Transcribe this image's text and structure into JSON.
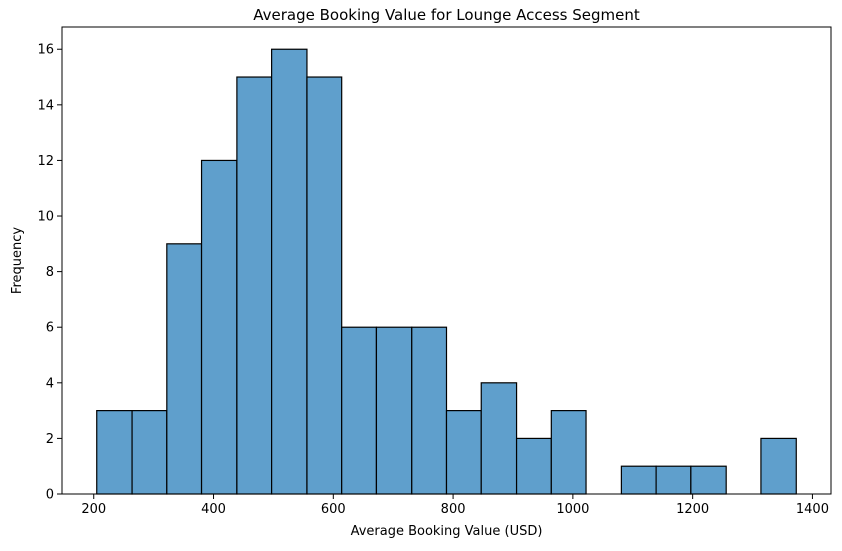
{
  "chart_data": {
    "type": "bar",
    "subtype": "histogram",
    "title": "Average Booking Value for Lounge Access Segment",
    "xlabel": "Average Booking Value (USD)",
    "ylabel": "Frequency",
    "bin_edges": [
      205,
      264,
      322,
      380,
      439,
      497,
      556,
      614,
      672,
      731,
      789,
      847,
      906,
      964,
      1022,
      1081,
      1139,
      1197,
      1256,
      1314,
      1373
    ],
    "values": [
      3,
      3,
      9,
      12,
      15,
      16,
      15,
      6,
      6,
      6,
      3,
      4,
      2,
      3,
      0,
      1,
      1,
      1,
      0,
      2
    ],
    "xlim": [
      147,
      1431
    ],
    "ylim": [
      0,
      16.8
    ],
    "xticks": [
      200,
      400,
      600,
      800,
      1000,
      1200,
      1400
    ],
    "yticks": [
      0,
      2,
      4,
      6,
      8,
      10,
      12,
      14,
      16
    ],
    "bar_color": "#5f9fcc",
    "edge_color": "#000000",
    "grid": false,
    "legend": "none"
  }
}
